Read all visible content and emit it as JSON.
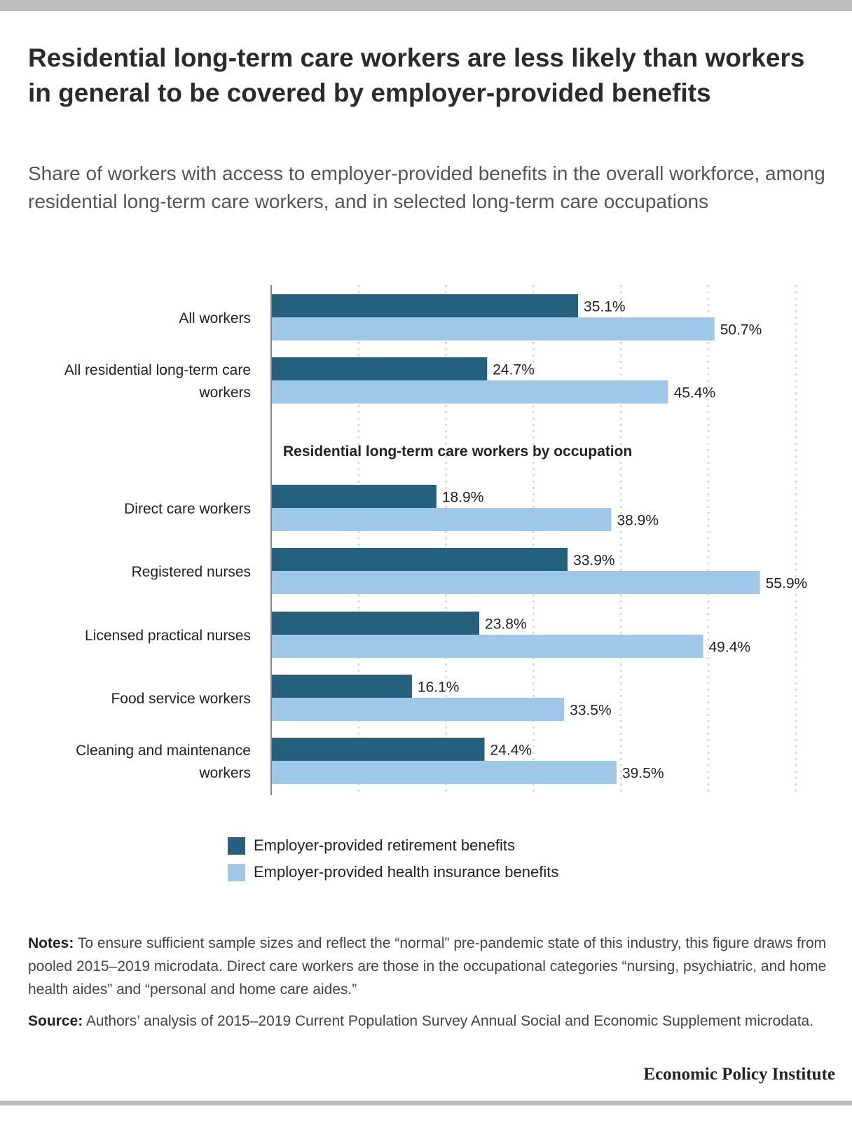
{
  "page": {
    "title": "Residential long-term care workers are less likely than workers in general to be covered by employer-provided benefits",
    "subtitle": "Share of workers with access to employer-provided benefits in the overall workforce, among residential long-term care workers, and in selected long-term care occupations",
    "notes_label": "Notes:",
    "notes_text": "To ensure sufficient sample sizes and reflect the “normal” pre-pandemic state of this industry, this figure draws from pooled 2015–2019 microdata. Direct care workers are those in the occupational categories “nursing, psychiatric, and home health aides” and “personal and home care aides.”",
    "source_label": "Source:",
    "source_text": "Authors’ analysis of 2015–2019 Current Population Survey Annual Social and Economic Supplement microdata.",
    "brand": "Economic Policy Institute"
  },
  "chart_data": {
    "type": "bar",
    "orientation": "horizontal",
    "categories": [
      "All workers",
      "All residential long-term care workers",
      "Direct care workers",
      "Registered nurses",
      "Licensed practical nurses",
      "Food service workers",
      "Cleaning and maintenance workers"
    ],
    "group_heading": "Residential long-term care workers by occupation",
    "group_heading_before_category": 2,
    "series": [
      {
        "name": "Employer-provided retirement benefits",
        "color": "#25607f",
        "values": [
          35.1,
          24.7,
          18.9,
          33.9,
          23.8,
          16.1,
          24.4
        ],
        "labels": [
          "35.1%",
          "24.7%",
          "18.9%",
          "33.9%",
          "23.8%",
          "16.1%",
          "24.4%"
        ]
      },
      {
        "name": "Employer-provided health insurance benefits",
        "color": "#9fc7e8",
        "values": [
          50.7,
          45.4,
          38.9,
          55.9,
          49.4,
          33.5,
          39.5
        ],
        "labels": [
          "50.7%",
          "45.4%",
          "38.9%",
          "55.9%",
          "49.4%",
          "33.5%",
          "39.5%"
        ]
      }
    ],
    "xlim": [
      0,
      60
    ],
    "grid": true,
    "axis_tick_labels_shown": false,
    "legend_position": "bottom"
  }
}
